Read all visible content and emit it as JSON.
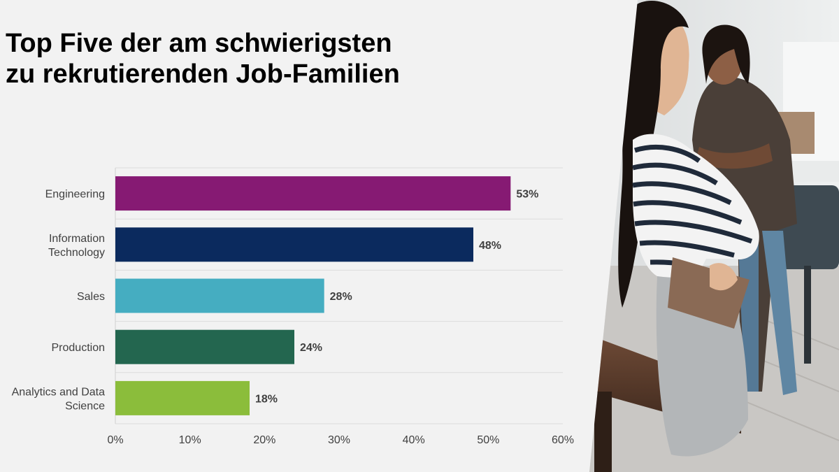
{
  "title": {
    "line1": "Top Five der am schwierigsten",
    "line2": "zu rekrutierenden Job-Familien"
  },
  "chart_data": {
    "type": "bar",
    "orientation": "horizontal",
    "categories": [
      [
        "Engineering"
      ],
      [
        "Information",
        "Technology"
      ],
      [
        "Sales"
      ],
      [
        "Production"
      ],
      [
        "Analytics and Data",
        "Science"
      ]
    ],
    "values": [
      53,
      48,
      28,
      24,
      18
    ],
    "value_labels": [
      "53%",
      "48%",
      "28%",
      "24%",
      "18%"
    ],
    "colors": [
      "#861a73",
      "#0b2a5e",
      "#45adc1",
      "#23664f",
      "#8bbd3b"
    ],
    "xlim": [
      0,
      60
    ],
    "xticks": [
      0,
      10,
      20,
      30,
      40,
      50,
      60
    ],
    "xtick_labels": [
      "0%",
      "10%",
      "20%",
      "30%",
      "40%",
      "50%",
      "60%"
    ],
    "grid": "horizontal separators between categories",
    "legend": "none"
  },
  "photo": {
    "description_icon": "office-photo"
  }
}
